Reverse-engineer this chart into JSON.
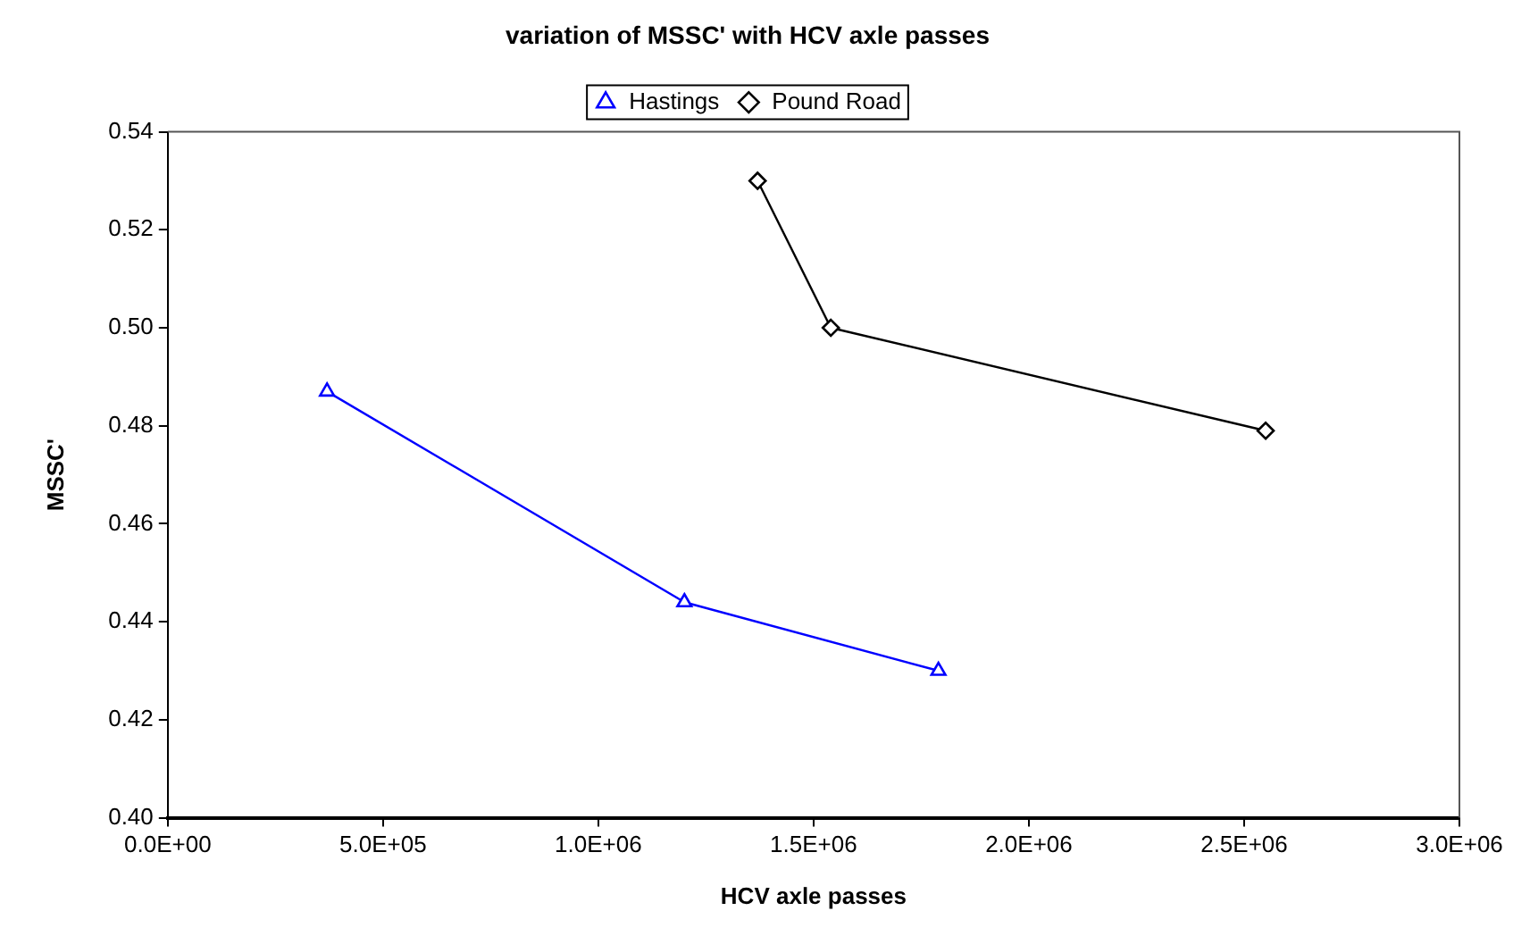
{
  "chart_data": {
    "type": "line",
    "title": "variation of MSSC' with HCV axle passes",
    "xlabel": "HCV axle passes",
    "ylabel": "MSSC'",
    "series": [
      {
        "name": "Hastings",
        "color": "#0000ff",
        "marker": "triangle",
        "x": [
          370000,
          1200000,
          1790000
        ],
        "values": [
          0.487,
          0.444,
          0.43
        ]
      },
      {
        "name": "Pound Road",
        "color": "#000000",
        "marker": "diamond",
        "x": [
          1370000,
          1540000,
          2550000
        ],
        "values": [
          0.53,
          0.5,
          0.479
        ]
      }
    ],
    "xlim": [
      0,
      3000000
    ],
    "xticks": [
      {
        "value": 0,
        "label": "0.0E+00"
      },
      {
        "value": 500000,
        "label": "5.0E+05"
      },
      {
        "value": 1000000,
        "label": "1.0E+06"
      },
      {
        "value": 1500000,
        "label": "1.5E+06"
      },
      {
        "value": 2000000,
        "label": "2.0E+06"
      },
      {
        "value": 2500000,
        "label": "2.5E+06"
      },
      {
        "value": 3000000,
        "label": "3.0E+06"
      }
    ],
    "ylim": [
      0.4,
      0.54
    ],
    "yticks": [
      {
        "value": 0.4,
        "label": "0.40"
      },
      {
        "value": 0.42,
        "label": "0.42"
      },
      {
        "value": 0.44,
        "label": "0.44"
      },
      {
        "value": 0.46,
        "label": "0.46"
      },
      {
        "value": 0.48,
        "label": "0.48"
      },
      {
        "value": 0.5,
        "label": "0.50"
      },
      {
        "value": 0.52,
        "label": "0.52"
      },
      {
        "value": 0.54,
        "label": "0.54"
      }
    ],
    "grid": false,
    "legend": "top"
  }
}
